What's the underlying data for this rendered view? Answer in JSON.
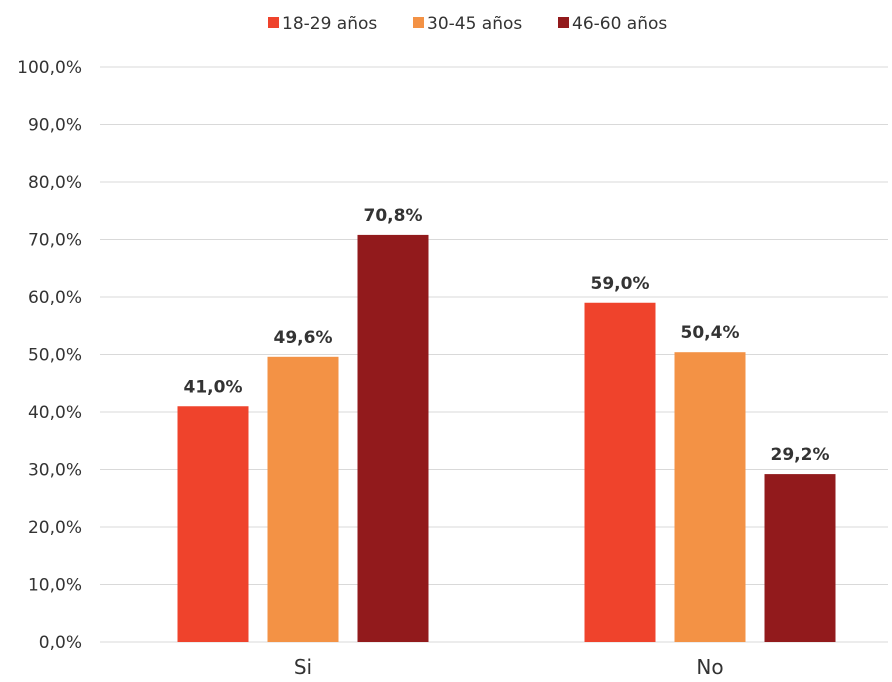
{
  "chart_data": {
    "type": "bar",
    "categories": [
      "Si",
      "No"
    ],
    "series": [
      {
        "name": "18-29 años",
        "values": [
          41.0,
          59.0
        ],
        "color": "#ef432c"
      },
      {
        "name": "30-45 años",
        "values": [
          49.6,
          50.4
        ],
        "color": "#f39245"
      },
      {
        "name": "46-60 años",
        "values": [
          70.8,
          29.2
        ],
        "color": "#921a1c"
      }
    ],
    "data_labels": [
      [
        "41,0%",
        "59,0%"
      ],
      [
        "49,6%",
        "50,4%"
      ],
      [
        "70,8%",
        "29,2%"
      ]
    ],
    "y_ticks": [
      "0,0%",
      "10,0%",
      "20,0%",
      "30,0%",
      "40,0%",
      "50,0%",
      "60,0%",
      "70,0%",
      "80,0%",
      "90,0%",
      "100,0%"
    ],
    "ylim": [
      0,
      100
    ],
    "grid": true,
    "legend_position": "top",
    "title": "",
    "xlabel": "",
    "ylabel": ""
  }
}
